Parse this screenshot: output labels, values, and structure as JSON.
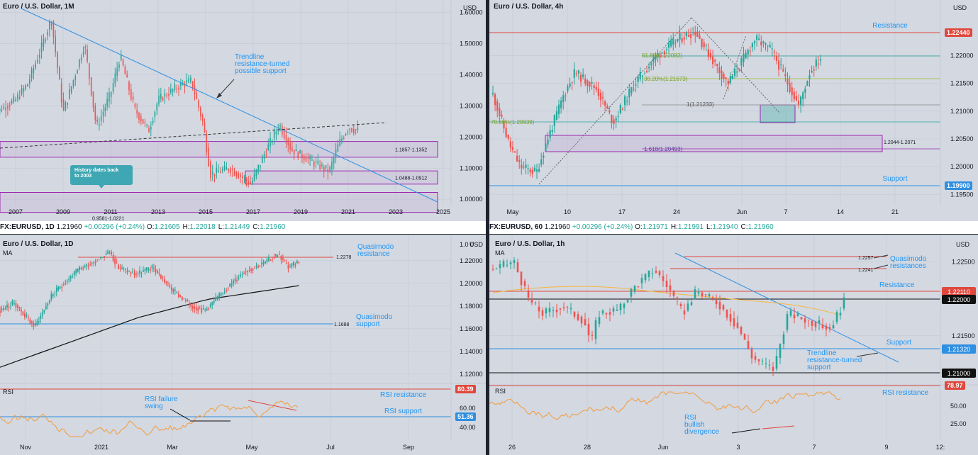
{
  "colors": {
    "bg": "#d3d8e1",
    "grid": "#c6ccd6",
    "up": "#26a69a",
    "down": "#ef5350",
    "trend": "#2f8fe0",
    "zone": "#9c27b0",
    "resistance": "#e0473d",
    "rsi": "#f39c3d",
    "fib": "#9bbf2b",
    "ma": "#f5b840",
    "annot": "#2196f3"
  },
  "tickers": [
    {
      "symbol": "FX:EURUSD, 1D",
      "last": "1.21960",
      "change": "+0.00296 (+0.24%)",
      "o": "1.21605",
      "h": "1.22018",
      "l": "1.21449",
      "c": "1.21960"
    },
    {
      "symbol": "FX:EURUSD, 60",
      "last": "1.21960",
      "change": "+0.00296 (+0.24%)",
      "o": "1.21971",
      "h": "1.21991",
      "l": "1.21940",
      "c": "1.21960"
    }
  ],
  "charts": {
    "monthly": {
      "title": "Euro / U.S. Dollar, 1M",
      "currency": "USD",
      "chart_data": {
        "type": "candlestick",
        "x_ticks": [
          "2007",
          "2009",
          "2011",
          "2013",
          "2015",
          "2017",
          "2019",
          "2021",
          "2023",
          "2025"
        ],
        "y_ticks": [
          "1.60000",
          "1.50000",
          "1.40000",
          "1.30000",
          "1.20000",
          "1.10000",
          "1.00000"
        ],
        "ylim": [
          0.98,
          1.64
        ],
        "approx_close_path": [
          {
            "year": 2006.0,
            "close": 1.27
          },
          {
            "year": 2007.0,
            "close": 1.32
          },
          {
            "year": 2007.5,
            "close": 1.37
          },
          {
            "year": 2008.0,
            "close": 1.47
          },
          {
            "year": 2008.5,
            "close": 1.58
          },
          {
            "year": 2008.8,
            "close": 1.4
          },
          {
            "year": 2009.0,
            "close": 1.28
          },
          {
            "year": 2009.5,
            "close": 1.4
          },
          {
            "year": 2009.9,
            "close": 1.5
          },
          {
            "year": 2010.4,
            "close": 1.23
          },
          {
            "year": 2011.0,
            "close": 1.34
          },
          {
            "year": 2011.4,
            "close": 1.46
          },
          {
            "year": 2012.0,
            "close": 1.29
          },
          {
            "year": 2012.6,
            "close": 1.22
          },
          {
            "year": 2013.0,
            "close": 1.32
          },
          {
            "year": 2014.0,
            "close": 1.37
          },
          {
            "year": 2014.4,
            "close": 1.38
          },
          {
            "year": 2014.9,
            "close": 1.24
          },
          {
            "year": 2015.2,
            "close": 1.08
          },
          {
            "year": 2016.0,
            "close": 1.1
          },
          {
            "year": 2016.9,
            "close": 1.05
          },
          {
            "year": 2017.5,
            "close": 1.15
          },
          {
            "year": 2018.1,
            "close": 1.24
          },
          {
            "year": 2018.6,
            "close": 1.16
          },
          {
            "year": 2019.5,
            "close": 1.12
          },
          {
            "year": 2020.2,
            "close": 1.09
          },
          {
            "year": 2020.6,
            "close": 1.18
          },
          {
            "year": 2021.0,
            "close": 1.23
          },
          {
            "year": 2021.4,
            "close": 1.22
          }
        ],
        "zones": [
          {
            "label": "1.1857-1.1352",
            "from": 1.1352,
            "to": 1.1857
          },
          {
            "label": "1.0488-1.0912",
            "from": 1.0488,
            "to": 1.0912
          },
          {
            "label": "0.9581-1.0221",
            "from": 0.9581,
            "to": 1.0221
          }
        ],
        "annotations": [
          "Trendline resistance-turned possible support",
          "History dates back to 2003"
        ]
      },
      "notes": {
        "trendline_line1": "Trendline",
        "trendline_line2": "resistance-turned",
        "trendline_line3": "possible support",
        "history_line1": "History dates back",
        "history_line2": "to 2003"
      }
    },
    "h4": {
      "title": "Euro / U.S. Dollar, 4h",
      "currency": "USD",
      "chart_data": {
        "type": "candlestick",
        "x_ticks": [
          "May",
          "10",
          "17",
          "24",
          "Jun",
          "7",
          "14",
          "21"
        ],
        "y_ticks": [
          "1.22000",
          "1.21500",
          "1.21000",
          "1.20500",
          "1.20000",
          "1.19500"
        ],
        "ylim": [
          1.193,
          1.23
        ],
        "approx_close_path": [
          {
            "t": 0,
            "close": 1.213
          },
          {
            "t": 3,
            "close": 1.204
          },
          {
            "t": 5,
            "close": 1.2
          },
          {
            "t": 8,
            "close": 1.199
          },
          {
            "t": 10,
            "close": 1.205
          },
          {
            "t": 13,
            "close": 1.213
          },
          {
            "t": 15,
            "close": 1.217
          },
          {
            "t": 19,
            "close": 1.214
          },
          {
            "t": 22,
            "close": 1.208
          },
          {
            "t": 26,
            "close": 1.215
          },
          {
            "t": 30,
            "close": 1.22
          },
          {
            "t": 34,
            "close": 1.223
          },
          {
            "t": 37,
            "close": 1.2244
          },
          {
            "t": 41,
            "close": 1.218
          },
          {
            "t": 43,
            "close": 1.215
          },
          {
            "t": 45,
            "close": 1.218
          },
          {
            "t": 48,
            "close": 1.223
          },
          {
            "t": 51,
            "close": 1.221
          },
          {
            "t": 54,
            "close": 1.215
          },
          {
            "t": 56,
            "close": 1.211
          },
          {
            "t": 58,
            "close": 1.217
          },
          {
            "t": 60,
            "close": 1.2196
          }
        ],
        "levels": [
          {
            "label": "Resistance",
            "value": "1.22440"
          },
          {
            "label": "Support",
            "value": "1.19900"
          }
        ],
        "fib_labels": [
          "61.8%(1.22082)",
          "38.20%(1.21673)",
          "1(1.21233)",
          "78.60%(1.20939)",
          "1.618(1.20493)"
        ],
        "zone_label": "1.2044-1.2071"
      }
    },
    "daily": {
      "title": "Euro / U.S. Dollar, 1D",
      "ma_label": "MA",
      "currency": "USD",
      "chart_data": {
        "type": "candlestick",
        "x_ticks": [
          "Nov",
          "2021",
          "Mar",
          "May",
          "Jul",
          "Sep"
        ],
        "y_ticks": [
          "1.22000",
          "1.20000",
          "1.18000",
          "1.16000",
          "1.14000",
          "1.12000"
        ],
        "top_tick": "1.0 0",
        "ylim": [
          1.118,
          1.243
        ],
        "approx_close_path": [
          {
            "t": 0,
            "close": 1.176
          },
          {
            "t": 8,
            "close": 1.183
          },
          {
            "t": 14,
            "close": 1.172
          },
          {
            "t": 20,
            "close": 1.162
          },
          {
            "t": 30,
            "close": 1.19
          },
          {
            "t": 45,
            "close": 1.212
          },
          {
            "t": 55,
            "close": 1.22
          },
          {
            "t": 63,
            "close": 1.228
          },
          {
            "t": 68,
            "close": 1.214
          },
          {
            "t": 78,
            "close": 1.208
          },
          {
            "t": 88,
            "close": 1.214
          },
          {
            "t": 98,
            "close": 1.196
          },
          {
            "t": 110,
            "close": 1.18
          },
          {
            "t": 118,
            "close": 1.176
          },
          {
            "t": 128,
            "close": 1.192
          },
          {
            "t": 140,
            "close": 1.21
          },
          {
            "t": 152,
            "close": 1.218
          },
          {
            "t": 160,
            "close": 1.226
          },
          {
            "t": 166,
            "close": 1.214
          },
          {
            "t": 172,
            "close": 1.2196
          }
        ],
        "ma_path": [
          {
            "t": 0,
            "v": 1.126
          },
          {
            "t": 40,
            "v": 1.148
          },
          {
            "t": 80,
            "v": 1.17
          },
          {
            "t": 120,
            "v": 1.186
          },
          {
            "t": 172,
            "v": 1.198
          }
        ],
        "levels": [
          {
            "label": "Quasimodo resistance",
            "value": "1.2278"
          },
          {
            "label": "Quasimodo support",
            "value": "1.1688"
          }
        ],
        "rsi": {
          "label": "RSI",
          "ticks": [
            "60.00",
            "40.00"
          ],
          "levels": [
            {
              "label": "RSI resistance",
              "value": "80.39"
            },
            {
              "label": "RSI support",
              "value": "51.36"
            }
          ],
          "annotation": "RSI failure swing"
        }
      },
      "notes": {
        "qr_line1": "Quasimodo",
        "qr_line2": "resistance",
        "qs_line1": "Quasimodo",
        "qs_line2": "support",
        "rsi_fail_line1": "RSI failure",
        "rsi_fail_line2": "swing"
      }
    },
    "h1": {
      "title": "Euro / U.S. Dollar, 1h",
      "ma_label": "MA",
      "currency": "USD",
      "chart_data": {
        "type": "candlestick",
        "x_ticks": [
          "26",
          "28",
          "Jun",
          "3",
          "7",
          "9",
          "12:"
        ],
        "y_ticks": [
          "1.22500",
          "1.21500"
        ],
        "ylim": [
          1.208,
          1.2272
        ],
        "approx_close_path": [
          {
            "t": 0,
            "close": 1.224
          },
          {
            "t": 6,
            "close": 1.225
          },
          {
            "t": 10,
            "close": 1.22
          },
          {
            "t": 14,
            "close": 1.218
          },
          {
            "t": 20,
            "close": 1.219
          },
          {
            "t": 26,
            "close": 1.217
          },
          {
            "t": 28,
            "close": 1.214
          },
          {
            "t": 30,
            "close": 1.218
          },
          {
            "t": 36,
            "close": 1.2185
          },
          {
            "t": 40,
            "close": 1.2215
          },
          {
            "t": 46,
            "close": 1.224
          },
          {
            "t": 50,
            "close": 1.2215
          },
          {
            "t": 54,
            "close": 1.218
          },
          {
            "t": 58,
            "close": 1.221
          },
          {
            "t": 64,
            "close": 1.2195
          },
          {
            "t": 70,
            "close": 1.216
          },
          {
            "t": 74,
            "close": 1.212
          },
          {
            "t": 80,
            "close": 1.2105
          },
          {
            "t": 84,
            "close": 1.218
          },
          {
            "t": 90,
            "close": 1.217
          },
          {
            "t": 96,
            "close": 1.216
          },
          {
            "t": 100,
            "close": 1.2196
          }
        ],
        "levels": [
          {
            "label": "",
            "value": "1.2257"
          },
          {
            "label": "",
            "value": "1.2241"
          },
          {
            "label": "Resistance",
            "value": "1.22110"
          },
          {
            "label": "",
            "value": "1.22000"
          },
          {
            "label": "Support",
            "value": "1.21320"
          },
          {
            "label": "",
            "value": "1.21000"
          }
        ],
        "rsi": {
          "label": "RSI",
          "ticks": [
            "50.00",
            "25.00"
          ],
          "levels": [
            {
              "label": "RSI resistance",
              "value": "78.97"
            }
          ],
          "annotation": "RSI bullish divergence"
        }
      },
      "notes": {
        "qm_line1": "Quasimodo",
        "qm_line2": "resistances",
        "trend_line1": "Trendline",
        "trend_line2": "resistance-turned",
        "trend_line3": "support",
        "rsi_line1": "RSI",
        "rsi_line2": "bullish",
        "rsi_line3": "divergence"
      }
    }
  }
}
